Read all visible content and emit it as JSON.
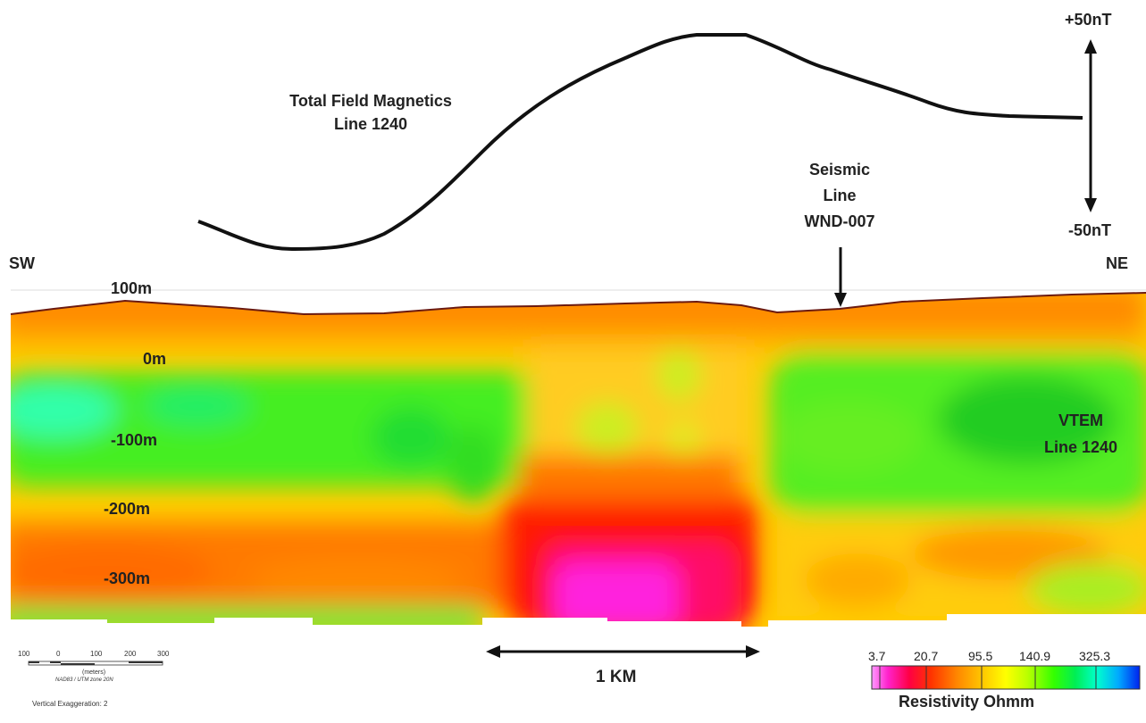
{
  "magnetics": {
    "title_line1": "Total Field Magnetics",
    "title_line2": "Line 1240",
    "scale_top": "+50nT",
    "scale_bottom": "-50nT"
  },
  "seismic": {
    "line1": "Seismic",
    "line2": "Line",
    "line3": "WND-007"
  },
  "directions": {
    "left": "SW",
    "right": "NE"
  },
  "depth_labels": [
    "100m",
    "0m",
    "-100m",
    "-200m",
    "-300m"
  ],
  "vtem": {
    "line1": "VTEM",
    "line2": "Line 1240"
  },
  "distance": {
    "label": "1 KM"
  },
  "scalebar": {
    "ticks": [
      "100",
      "0",
      "100",
      "200",
      "300"
    ],
    "units": "(meters)",
    "projection": "NAD83 / UTM zone 20N",
    "exaggeration": "Vertical Exaggeration: 2"
  },
  "legend": {
    "ticks": [
      "3.7",
      "20.7",
      "95.5",
      "140.9",
      "325.3"
    ],
    "title": "Resistivity Ohmm",
    "colors": [
      "#ff66ff",
      "#ff22cc",
      "#ff0044",
      "#ff3300",
      "#ff6600",
      "#ff9900",
      "#ffcc00",
      "#ffff00",
      "#ccff00",
      "#66ff00",
      "#00ee44",
      "#00ffcc",
      "#00ccff",
      "#0066ff",
      "#0000ee"
    ]
  }
}
